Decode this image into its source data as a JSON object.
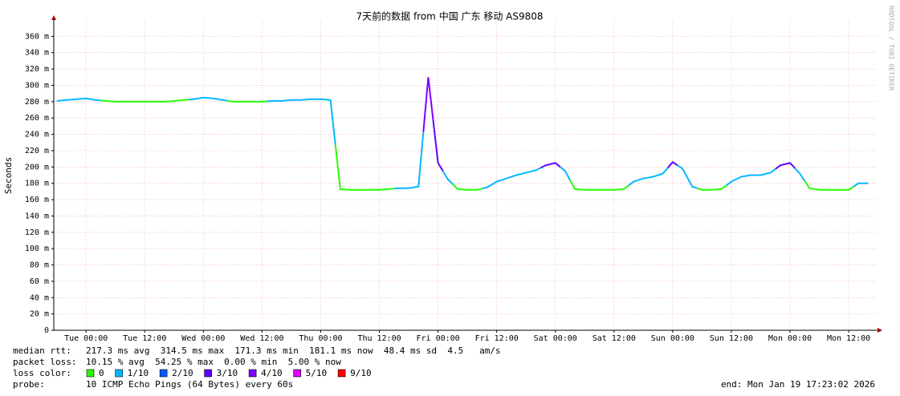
{
  "chart_data": {
    "type": "line",
    "title": "7天前的数据 from 中国 广东 移动 AS9808",
    "y_label": "Seconds",
    "watermark": "RRDTOOL / TOBI OETIKER",
    "xlim": [
      -6.6,
      161.9
    ],
    "xticks": [
      {
        "value": 0,
        "label": "Tue 00:00"
      },
      {
        "value": 12,
        "label": "Tue 12:00"
      },
      {
        "value": 24,
        "label": "Wed 00:00"
      },
      {
        "value": 36,
        "label": "Wed 12:00"
      },
      {
        "value": 48,
        "label": "Thu 00:00"
      },
      {
        "value": 60,
        "label": "Thu 12:00"
      },
      {
        "value": 72,
        "label": "Fri 00:00"
      },
      {
        "value": 84,
        "label": "Fri 12:00"
      },
      {
        "value": 96,
        "label": "Sat 00:00"
      },
      {
        "value": 108,
        "label": "Sat 12:00"
      },
      {
        "value": 120,
        "label": "Sun 00:00"
      },
      {
        "value": 132,
        "label": "Sun 12:00"
      },
      {
        "value": 144,
        "label": "Mon 00:00"
      },
      {
        "value": 156,
        "label": "Mon 12:00"
      }
    ],
    "ylim": [
      0,
      380
    ],
    "yticks": [
      0,
      {
        "value": 20,
        "label": "20 m"
      },
      {
        "value": 40,
        "label": "40 m"
      },
      {
        "value": 60,
        "label": "60 m"
      },
      {
        "value": 80,
        "label": "80 m"
      },
      {
        "value": 100,
        "label": "100 m"
      },
      {
        "value": 120,
        "label": "120 m"
      },
      {
        "value": 140,
        "label": "140 m"
      },
      {
        "value": 160,
        "label": "160 m"
      },
      {
        "value": 180,
        "label": "180 m"
      },
      {
        "value": 200,
        "label": "200 m"
      },
      {
        "value": 220,
        "label": "220 m"
      },
      {
        "value": 240,
        "label": "240 m"
      },
      {
        "value": 260,
        "label": "260 m"
      },
      {
        "value": 280,
        "label": "280 m"
      },
      {
        "value": 300,
        "label": "300 m"
      },
      {
        "value": 320,
        "label": "320 m"
      },
      {
        "value": 340,
        "label": "340 m"
      },
      {
        "value": 360,
        "label": "360 m"
      }
    ],
    "grid": true,
    "x": [
      -6,
      -4,
      -2,
      0,
      2,
      4,
      6,
      8,
      10,
      12,
      14,
      16,
      18,
      20,
      22,
      24,
      26,
      28,
      30,
      32,
      34,
      36,
      38,
      40,
      42,
      44,
      46,
      48,
      50,
      52,
      54,
      56,
      58,
      60,
      62,
      64,
      66,
      68,
      70,
      72,
      74,
      76,
      78,
      80,
      82,
      84,
      86,
      88,
      90,
      92,
      94,
      96,
      98,
      100,
      102,
      104,
      106,
      108,
      110,
      112,
      114,
      116,
      118,
      120,
      122,
      124,
      126,
      128,
      130,
      132,
      134,
      136,
      138,
      140,
      142,
      144,
      146,
      148,
      150,
      152,
      154,
      156,
      158,
      160
    ],
    "series": [
      {
        "values": [
          281,
          282,
          283,
          284,
          282,
          281,
          280,
          280,
          280,
          280,
          280,
          280,
          281,
          282,
          283,
          285,
          284,
          282,
          280,
          280,
          280,
          280,
          281,
          281,
          282,
          282,
          283,
          283,
          282,
          173,
          172,
          172,
          172,
          172,
          173,
          174,
          174,
          176,
          310,
          205,
          185,
          173,
          172,
          172,
          175,
          182,
          186,
          190,
          193,
          196,
          202,
          205,
          195,
          173,
          172,
          172,
          172,
          172,
          173,
          182,
          186,
          188,
          192,
          206,
          198,
          176,
          172,
          172,
          173,
          182,
          188,
          190,
          190,
          193,
          202,
          205,
          192,
          174,
          172,
          172,
          172,
          172,
          180,
          180
        ],
        "loss": [
          1,
          1,
          1,
          1,
          1,
          0,
          0,
          0,
          0,
          0,
          0,
          0,
          0,
          0,
          1,
          1,
          1,
          1,
          0,
          0,
          0,
          0,
          1,
          1,
          1,
          1,
          1,
          1,
          1,
          0,
          0,
          0,
          0,
          0,
          0,
          1,
          1,
          1,
          4,
          3,
          1,
          0,
          0,
          0,
          1,
          1,
          1,
          1,
          1,
          1,
          3,
          3,
          1,
          0,
          0,
          0,
          0,
          0,
          0,
          1,
          1,
          1,
          1,
          3,
          1,
          1,
          0,
          0,
          0,
          1,
          1,
          1,
          1,
          1,
          3,
          3,
          1,
          0,
          0,
          0,
          0,
          0,
          1,
          1
        ]
      }
    ],
    "legend_title": "loss color:",
    "legend": [
      {
        "loss": 0,
        "label": "0",
        "color": "#26ff00"
      },
      {
        "loss": 1,
        "label": "1/10",
        "color": "#00b8ff"
      },
      {
        "loss": 2,
        "label": "2/10",
        "color": "#0059ff"
      },
      {
        "loss": 3,
        "label": "3/10",
        "color": "#5e00ff"
      },
      {
        "loss": 4,
        "label": "4/10",
        "color": "#7e00ff"
      },
      {
        "loss": 5,
        "label": "5/10",
        "color": "#dd00ff"
      },
      {
        "loss": 9,
        "label": "9/10",
        "color": "#ff0000"
      }
    ],
    "info": {
      "median_rtt": {
        "label": "median rtt:",
        "text": "217.3 ms avg  314.5 ms max  171.3 ms min  181.1 ms now  48.4 ms sd  4.5   am/s"
      },
      "packet_loss": {
        "label": "packet loss:",
        "text": "10.15 % avg  54.25 % max  0.00 % min  5.00 % now"
      },
      "probe": {
        "label": "probe:",
        "text": "10 ICMP Echo Pings (64 Bytes) every 60s"
      },
      "end": "end: Mon Jan 19 17:23:02 2026"
    }
  }
}
